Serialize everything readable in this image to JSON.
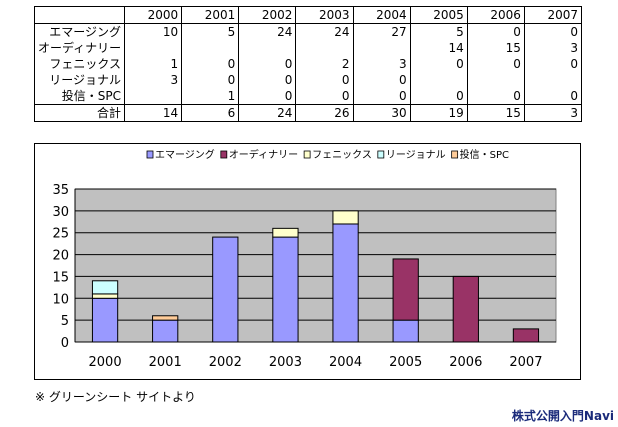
{
  "table": {
    "years": [
      "2000",
      "2001",
      "2002",
      "2003",
      "2004",
      "2005",
      "2006",
      "2007"
    ],
    "rows": [
      {
        "label": "エマージング",
        "values": [
          "10",
          "5",
          "24",
          "24",
          "27",
          "5",
          "0",
          "0"
        ]
      },
      {
        "label": "オーディナリー",
        "values": [
          "",
          "",
          "",
          "",
          "",
          "14",
          "15",
          "3"
        ]
      },
      {
        "label": "フェニックス",
        "values": [
          "1",
          "0",
          "0",
          "2",
          "3",
          "0",
          "0",
          "0"
        ]
      },
      {
        "label": "リージョナル",
        "values": [
          "3",
          "0",
          "0",
          "0",
          "0",
          "",
          "",
          ""
        ]
      },
      {
        "label": "投信・SPC",
        "values": [
          "",
          "1",
          "0",
          "0",
          "0",
          "0",
          "0",
          "0"
        ]
      }
    ],
    "total": {
      "label": "合計",
      "values": [
        "14",
        "6",
        "24",
        "26",
        "30",
        "19",
        "15",
        "3"
      ]
    }
  },
  "chart_data": {
    "type": "bar",
    "stacked": true,
    "categories": [
      "2000",
      "2001",
      "2002",
      "2003",
      "2004",
      "2005",
      "2006",
      "2007"
    ],
    "series": [
      {
        "name": "エマージング",
        "values": [
          10,
          5,
          24,
          24,
          27,
          5,
          0,
          0
        ],
        "color": "#9999ff"
      },
      {
        "name": "オーディナリー",
        "values": [
          0,
          0,
          0,
          0,
          0,
          14,
          15,
          3
        ],
        "color": "#993366"
      },
      {
        "name": "フェニックス",
        "values": [
          1,
          0,
          0,
          2,
          3,
          0,
          0,
          0
        ],
        "color": "#ffffcc"
      },
      {
        "name": "リージョナル",
        "values": [
          3,
          0,
          0,
          0,
          0,
          0,
          0,
          0
        ],
        "color": "#ccffff"
      },
      {
        "name": "投信・SPC",
        "values": [
          0,
          1,
          0,
          0,
          0,
          0,
          0,
          0
        ],
        "color": "#ffcc99"
      }
    ],
    "ylim": [
      0,
      35
    ],
    "yticks": [
      0,
      5,
      10,
      15,
      20,
      25,
      30,
      35
    ],
    "grid": true,
    "plot_background": "#c0c0c0",
    "legend_position": "top"
  },
  "source_note": "※ グリーンシート サイトより",
  "brand": "株式公開入門Navi"
}
